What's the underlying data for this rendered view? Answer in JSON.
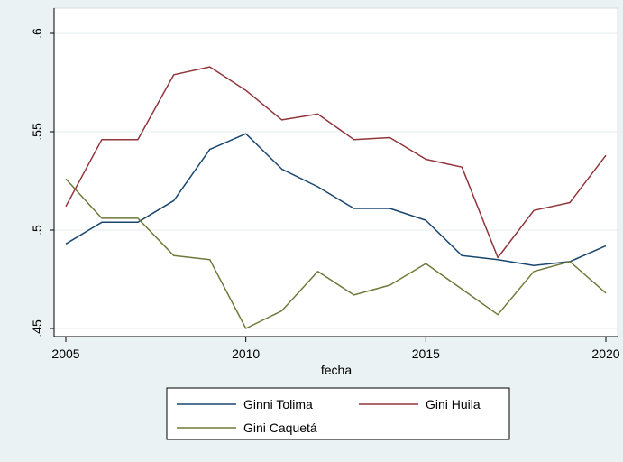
{
  "chart_data": {
    "type": "line",
    "title": "",
    "xlabel": "fecha",
    "ylabel": "",
    "xlim": [
      2005,
      2020
    ],
    "ylim": [
      0.45,
      0.6
    ],
    "x_ticks": [
      2005,
      2010,
      2015,
      2020
    ],
    "x_tick_labels": [
      "2005",
      "2010",
      "2015",
      "2020"
    ],
    "y_ticks": [
      0.45,
      0.5,
      0.55,
      0.6
    ],
    "y_tick_labels": [
      ".45",
      ".5",
      ".55",
      ".6"
    ],
    "grid": true,
    "legend_position": "bottom",
    "x": [
      2005,
      2006,
      2007,
      2008,
      2009,
      2010,
      2011,
      2012,
      2013,
      2014,
      2015,
      2016,
      2017,
      2018,
      2019,
      2020
    ],
    "series": [
      {
        "name": "Ginni Tolima",
        "color": "#1a476f",
        "values": [
          0.493,
          0.504,
          0.504,
          0.515,
          0.541,
          0.549,
          0.531,
          0.522,
          0.511,
          0.511,
          0.505,
          0.487,
          0.485,
          0.482,
          0.484,
          0.492
        ]
      },
      {
        "name": "Gini Huila",
        "color": "#90353b",
        "values": [
          0.512,
          0.546,
          0.546,
          0.579,
          0.583,
          0.571,
          0.556,
          0.559,
          0.546,
          0.547,
          0.536,
          0.532,
          0.486,
          0.51,
          0.514,
          0.538
        ]
      },
      {
        "name": "Gini Caquetá",
        "color": "#6e7a3a",
        "values": [
          0.526,
          0.506,
          0.506,
          0.487,
          0.485,
          0.45,
          0.459,
          0.479,
          0.467,
          0.472,
          0.483,
          0.47,
          0.457,
          0.479,
          0.484,
          0.468
        ]
      }
    ]
  }
}
